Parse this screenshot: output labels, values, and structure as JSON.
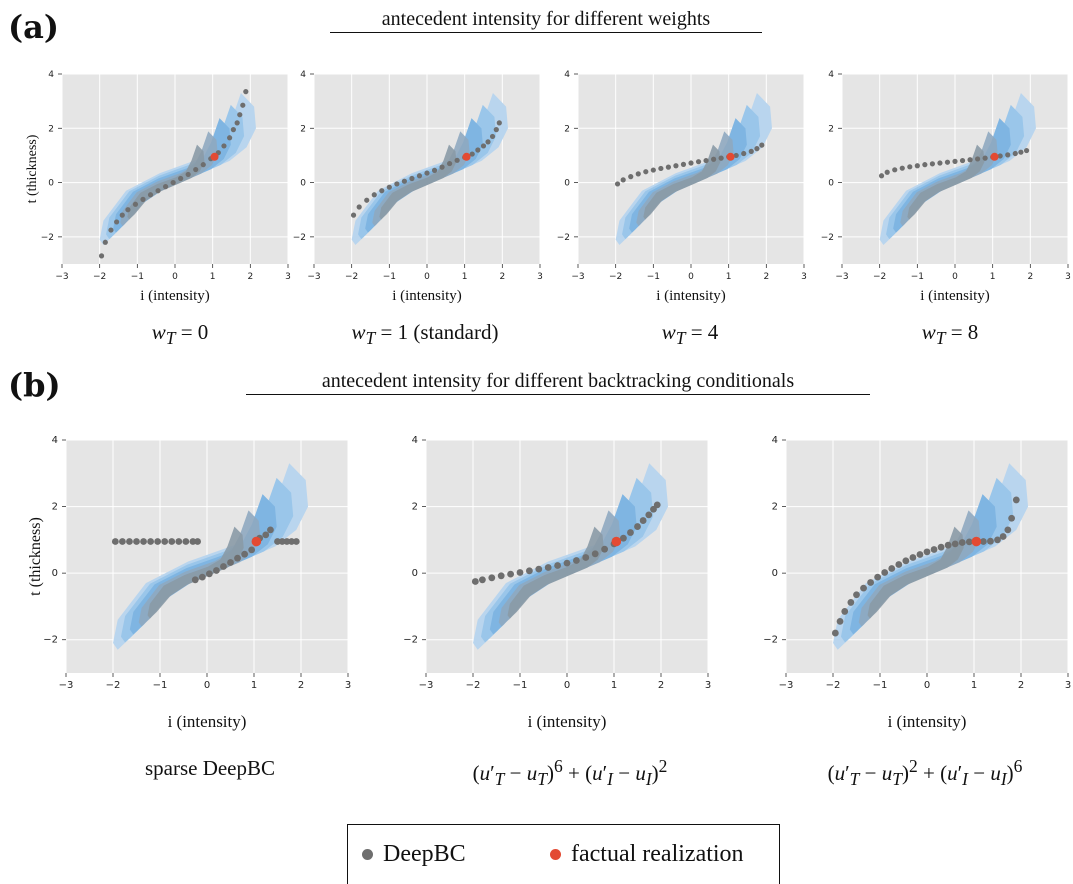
{
  "labels": {
    "a": "(a)",
    "b": "(b)"
  },
  "titles": {
    "a": "antecedent intensity for different weights",
    "b": "antecedent intensity for different backtracking conditionals"
  },
  "axis_labels": {
    "x": "i (intensity)",
    "y": "t (thickness)"
  },
  "captions": {
    "a": [
      "w_T = 0",
      "w_T = 1 (standard)",
      "w_T = 4",
      "w_T = 8"
    ],
    "b": [
      "sparse DeepBC",
      "(u'_T − u_T)^6 + (u'_I − u_I)^2",
      "(u'_T − u_T)^2 + (u'_I − u_I)^6"
    ]
  },
  "legend": {
    "items": [
      {
        "label": "DeepBC",
        "color": "#6e6e6e"
      },
      {
        "label": "factual realization",
        "color": "#e34a33"
      }
    ]
  },
  "colors": {
    "plot_bg": "#e5e5e5",
    "grid": "#ffffff",
    "density": [
      "#b9d5ee",
      "#9ac6ea",
      "#7fb5e2",
      "#8fa9c0",
      "#8a9aa6"
    ],
    "deepbc": "#6e6e6e",
    "factual": "#e34a33"
  },
  "chart_data": [
    {
      "type": "scatter",
      "panel": "a1",
      "xlim": [
        -3,
        3
      ],
      "ylim": [
        -3,
        4
      ],
      "x_ticks": [
        "−3",
        "−2",
        "−1",
        "0",
        "1",
        "2",
        "3"
      ],
      "y_ticks": [
        "−2",
        "0",
        "2",
        "4"
      ],
      "grid": true,
      "factual": [
        1.05,
        0.95
      ],
      "series": [
        {
          "name": "DeepBC",
          "x": [
            -1.95,
            -1.85,
            -1.7,
            -1.55,
            -1.4,
            -1.25,
            -1.05,
            -0.85,
            -0.65,
            -0.45,
            -0.25,
            -0.05,
            0.15,
            0.35,
            0.55,
            0.75,
            0.95,
            1.15,
            1.3,
            1.45,
            1.55,
            1.65,
            1.72,
            1.8,
            1.88
          ],
          "y": [
            -2.7,
            -2.2,
            -1.75,
            -1.45,
            -1.2,
            -1.0,
            -0.8,
            -0.62,
            -0.45,
            -0.3,
            -0.15,
            0.0,
            0.15,
            0.3,
            0.48,
            0.66,
            0.88,
            1.1,
            1.35,
            1.65,
            1.95,
            2.2,
            2.5,
            2.85,
            3.35
          ]
        }
      ]
    },
    {
      "type": "scatter",
      "panel": "a2",
      "xlim": [
        -3,
        3
      ],
      "ylim": [
        -3,
        4
      ],
      "x_ticks": [
        "−3",
        "−2",
        "−1",
        "0",
        "1",
        "2",
        "3"
      ],
      "y_ticks": [
        "−2",
        "0",
        "2",
        "4"
      ],
      "grid": true,
      "factual": [
        1.05,
        0.95
      ],
      "series": [
        {
          "name": "DeepBC",
          "x": [
            -1.95,
            -1.8,
            -1.6,
            -1.4,
            -1.2,
            -1.0,
            -0.8,
            -0.6,
            -0.4,
            -0.2,
            0.0,
            0.2,
            0.4,
            0.6,
            0.8,
            1.0,
            1.2,
            1.35,
            1.5,
            1.62,
            1.74,
            1.84,
            1.92
          ],
          "y": [
            -1.2,
            -0.9,
            -0.65,
            -0.45,
            -0.3,
            -0.17,
            -0.05,
            0.05,
            0.15,
            0.25,
            0.35,
            0.45,
            0.57,
            0.7,
            0.82,
            0.93,
            1.05,
            1.2,
            1.35,
            1.5,
            1.7,
            1.95,
            2.2
          ]
        }
      ]
    },
    {
      "type": "scatter",
      "panel": "a3",
      "xlim": [
        -3,
        3
      ],
      "ylim": [
        -3,
        4
      ],
      "x_ticks": [
        "−3",
        "−2",
        "−1",
        "0",
        "1",
        "2",
        "3"
      ],
      "y_ticks": [
        "−2",
        "0",
        "2",
        "4"
      ],
      "grid": true,
      "factual": [
        1.05,
        0.95
      ],
      "series": [
        {
          "name": "DeepBC",
          "x": [
            -1.95,
            -1.8,
            -1.6,
            -1.4,
            -1.2,
            -1.0,
            -0.8,
            -0.6,
            -0.4,
            -0.2,
            0.0,
            0.2,
            0.4,
            0.6,
            0.8,
            1.0,
            1.2,
            1.4,
            1.6,
            1.75,
            1.88
          ],
          "y": [
            -0.05,
            0.1,
            0.22,
            0.32,
            0.4,
            0.46,
            0.52,
            0.57,
            0.62,
            0.67,
            0.72,
            0.77,
            0.81,
            0.86,
            0.9,
            0.95,
            1.0,
            1.07,
            1.15,
            1.25,
            1.38
          ]
        }
      ]
    },
    {
      "type": "scatter",
      "panel": "a4",
      "xlim": [
        -3,
        3
      ],
      "ylim": [
        -3,
        4
      ],
      "x_ticks": [
        "−3",
        "−2",
        "−1",
        "0",
        "1",
        "2",
        "3"
      ],
      "y_ticks": [
        "−2",
        "0",
        "2",
        "4"
      ],
      "grid": true,
      "factual": [
        1.05,
        0.95
      ],
      "series": [
        {
          "name": "DeepBC",
          "x": [
            -1.95,
            -1.8,
            -1.6,
            -1.4,
            -1.2,
            -1.0,
            -0.8,
            -0.6,
            -0.4,
            -0.2,
            0.0,
            0.2,
            0.4,
            0.6,
            0.8,
            1.0,
            1.2,
            1.4,
            1.6,
            1.75,
            1.9
          ],
          "y": [
            0.25,
            0.38,
            0.47,
            0.53,
            0.58,
            0.62,
            0.66,
            0.69,
            0.72,
            0.75,
            0.78,
            0.81,
            0.84,
            0.87,
            0.9,
            0.94,
            0.98,
            1.02,
            1.07,
            1.12,
            1.18
          ]
        }
      ]
    },
    {
      "type": "scatter",
      "panel": "b1",
      "xlim": [
        -3,
        3
      ],
      "ylim": [
        -3,
        4
      ],
      "x_ticks": [
        "−3",
        "−2",
        "−1",
        "0",
        "1",
        "2",
        "3"
      ],
      "y_ticks": [
        "−2",
        "0",
        "2",
        "4"
      ],
      "grid": true,
      "factual": [
        1.05,
        0.95
      ],
      "series": [
        {
          "name": "DeepBC",
          "x": [
            -1.95,
            -1.8,
            -1.65,
            -1.5,
            -1.35,
            -1.2,
            -1.05,
            -0.9,
            -0.75,
            -0.6,
            -0.45,
            -0.3,
            -0.2,
            -0.25,
            -0.1,
            0.05,
            0.2,
            0.35,
            0.5,
            0.65,
            0.8,
            0.95,
            1.12,
            1.25,
            1.35,
            1.5,
            1.6,
            1.7,
            1.8,
            1.9
          ],
          "y": [
            0.95,
            0.95,
            0.95,
            0.95,
            0.95,
            0.95,
            0.95,
            0.95,
            0.95,
            0.95,
            0.95,
            0.95,
            0.95,
            -0.2,
            -0.12,
            -0.02,
            0.08,
            0.2,
            0.32,
            0.45,
            0.57,
            0.7,
            1.05,
            1.15,
            1.3,
            0.95,
            0.95,
            0.95,
            0.95,
            0.95
          ]
        }
      ]
    },
    {
      "type": "scatter",
      "panel": "b2",
      "xlim": [
        -3,
        3
      ],
      "ylim": [
        -3,
        4
      ],
      "x_ticks": [
        "−3",
        "−2",
        "−1",
        "0",
        "1",
        "2",
        "3"
      ],
      "y_ticks": [
        "−2",
        "0",
        "2",
        "4"
      ],
      "grid": true,
      "factual": [
        1.05,
        0.95
      ],
      "series": [
        {
          "name": "DeepBC",
          "x": [
            -1.95,
            -1.8,
            -1.6,
            -1.4,
            -1.2,
            -1.0,
            -0.8,
            -0.6,
            -0.4,
            -0.2,
            0.0,
            0.2,
            0.4,
            0.6,
            0.8,
            1.0,
            1.2,
            1.35,
            1.5,
            1.62,
            1.74,
            1.84,
            1.92
          ],
          "y": [
            -0.25,
            -0.2,
            -0.14,
            -0.08,
            -0.03,
            0.02,
            0.07,
            0.12,
            0.17,
            0.23,
            0.3,
            0.38,
            0.47,
            0.58,
            0.72,
            0.88,
            1.05,
            1.22,
            1.4,
            1.58,
            1.75,
            1.92,
            2.05
          ]
        }
      ]
    },
    {
      "type": "scatter",
      "panel": "b3",
      "xlim": [
        -3,
        3
      ],
      "ylim": [
        -3,
        4
      ],
      "x_ticks": [
        "−3",
        "−2",
        "−1",
        "0",
        "1",
        "2",
        "3"
      ],
      "y_ticks": [
        "−2",
        "0",
        "2",
        "4"
      ],
      "grid": true,
      "factual": [
        1.05,
        0.95
      ],
      "series": [
        {
          "name": "DeepBC",
          "x": [
            -1.95,
            -1.85,
            -1.75,
            -1.62,
            -1.5,
            -1.35,
            -1.2,
            -1.05,
            -0.9,
            -0.75,
            -0.6,
            -0.45,
            -0.3,
            -0.15,
            0.0,
            0.15,
            0.3,
            0.45,
            0.6,
            0.75,
            0.9,
            1.05,
            1.2,
            1.35,
            1.5,
            1.62,
            1.72,
            1.8,
            1.9
          ],
          "y": [
            -1.8,
            -1.45,
            -1.15,
            -0.88,
            -0.65,
            -0.45,
            -0.28,
            -0.12,
            0.02,
            0.14,
            0.26,
            0.37,
            0.47,
            0.56,
            0.64,
            0.71,
            0.78,
            0.84,
            0.88,
            0.92,
            0.94,
            0.95,
            0.95,
            0.96,
            1.0,
            1.1,
            1.3,
            1.65,
            2.2
          ]
        }
      ]
    }
  ]
}
